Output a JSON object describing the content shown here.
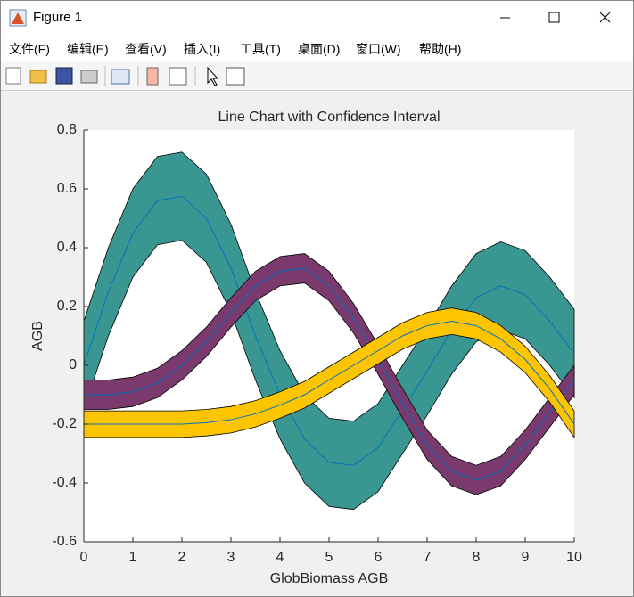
{
  "window": {
    "title": "Figure 1",
    "menu": [
      "文件(F)",
      "编辑(E)",
      "查看(V)",
      "插入(I)",
      "工具(T)",
      "桌面(D)",
      "窗口(W)",
      "帮助(H)"
    ]
  },
  "chart_data": {
    "type": "line-band",
    "title": "Line Chart with Confidence Interval",
    "x_label": "GlobBiomass AGB",
    "y_label": "AGB",
    "x": [
      0,
      0.5,
      1,
      1.5,
      2,
      2.5,
      3,
      3.5,
      4,
      4.5,
      5,
      5.5,
      6,
      6.5,
      7,
      7.5,
      8,
      8.5,
      9,
      9.5,
      10
    ],
    "series": [
      {
        "color": "#0072bd",
        "band_color": "#3a9690",
        "values": [
          0,
          0.25,
          0.45,
          0.56,
          0.575,
          0.5,
          0.33,
          0.1,
          -0.1,
          -0.25,
          -0.33,
          -0.34,
          -0.28,
          -0.15,
          -0.02,
          0.12,
          0.23,
          0.27,
          0.24,
          0.15,
          0.04
        ],
        "upper": [
          0.15,
          0.4,
          0.6,
          0.71,
          0.725,
          0.65,
          0.48,
          0.25,
          0.05,
          -0.1,
          -0.18,
          -0.19,
          -0.13,
          0,
          0.13,
          0.27,
          0.38,
          0.42,
          0.39,
          0.3,
          0.19
        ],
        "lower": [
          -0.15,
          0.1,
          0.3,
          0.41,
          0.425,
          0.35,
          0.18,
          -0.05,
          -0.25,
          -0.4,
          -0.48,
          -0.49,
          -0.43,
          -0.3,
          -0.17,
          -0.03,
          0.08,
          0.12,
          0.09,
          0,
          -0.11
        ]
      },
      {
        "color": "#0072bd",
        "band_color": "#7b3a6e",
        "values": [
          -0.1,
          -0.1,
          -0.09,
          -0.06,
          0,
          0.08,
          0.18,
          0.27,
          0.32,
          0.33,
          0.27,
          0.16,
          0.02,
          -0.13,
          -0.27,
          -0.36,
          -0.39,
          -0.36,
          -0.27,
          -0.16,
          -0.05
        ],
        "upper": [
          -0.05,
          -0.05,
          -0.04,
          -0.01,
          0.05,
          0.13,
          0.23,
          0.32,
          0.37,
          0.38,
          0.32,
          0.21,
          0.07,
          -0.08,
          -0.22,
          -0.31,
          -0.34,
          -0.31,
          -0.22,
          -0.11,
          0
        ],
        "lower": [
          -0.15,
          -0.15,
          -0.14,
          -0.11,
          -0.05,
          0.03,
          0.13,
          0.22,
          0.27,
          0.28,
          0.22,
          0.11,
          -0.03,
          -0.18,
          -0.32,
          -0.41,
          -0.44,
          -0.41,
          -0.32,
          -0.21,
          -0.1
        ]
      },
      {
        "color": "#0072bd",
        "band_color": "#fcc500",
        "values": [
          -0.2,
          -0.2,
          -0.2,
          -0.2,
          -0.2,
          -0.195,
          -0.185,
          -0.165,
          -0.135,
          -0.1,
          -0.05,
          0,
          0.05,
          0.1,
          0.135,
          0.15,
          0.135,
          0.09,
          0.02,
          -0.08,
          -0.2
        ],
        "upper": [
          -0.155,
          -0.155,
          -0.155,
          -0.155,
          -0.155,
          -0.15,
          -0.14,
          -0.12,
          -0.09,
          -0.055,
          -0.005,
          0.045,
          0.095,
          0.145,
          0.18,
          0.195,
          0.18,
          0.135,
          0.065,
          -0.035,
          -0.155
        ],
        "lower": [
          -0.245,
          -0.245,
          -0.245,
          -0.245,
          -0.245,
          -0.24,
          -0.23,
          -0.21,
          -0.18,
          -0.145,
          -0.095,
          -0.045,
          0.005,
          0.055,
          0.09,
          0.105,
          0.09,
          0.045,
          -0.025,
          -0.125,
          -0.245
        ]
      }
    ],
    "xlim": [
      0,
      10
    ],
    "xticks": [
      0,
      1,
      2,
      3,
      4,
      5,
      6,
      7,
      8,
      9,
      10
    ],
    "ylim": [
      -0.6,
      0.8
    ],
    "yticks": [
      -0.6,
      -0.4,
      -0.2,
      0,
      0.2,
      0.4,
      0.6,
      0.8
    ]
  }
}
